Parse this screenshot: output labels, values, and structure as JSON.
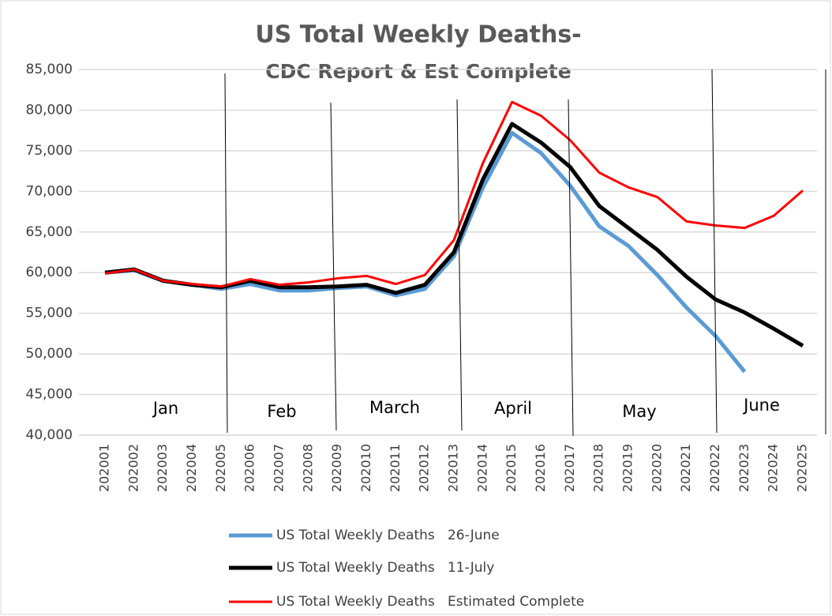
{
  "chart_data": {
    "type": "line",
    "title": "US Total Weekly Deaths-",
    "subtitle": "CDC Report & Est Complete",
    "categories": [
      "202001",
      "202002",
      "202003",
      "202004",
      "202005",
      "202006",
      "202007",
      "202008",
      "202009",
      "202010",
      "202011",
      "202012",
      "202013",
      "202014",
      "202015",
      "202016",
      "202017",
      "202018",
      "202019",
      "202020",
      "202021",
      "202022",
      "202023",
      "202024",
      "202025"
    ],
    "series": [
      {
        "name": "US Total Weekly Deaths   26-June",
        "color": "#5b9bd5",
        "values": [
          60000,
          60300,
          59000,
          58500,
          58000,
          58600,
          57800,
          57800,
          58100,
          58300,
          57200,
          58000,
          62000,
          70500,
          77200,
          74700,
          70700,
          65700,
          63300,
          59700,
          55700,
          52200,
          47800,
          null,
          null
        ]
      },
      {
        "name": "US Total Weekly Deaths   11-July",
        "color": "#000000",
        "values": [
          60000,
          60400,
          59000,
          58500,
          58200,
          59000,
          58200,
          58200,
          58300,
          58500,
          57500,
          58500,
          62500,
          71500,
          78300,
          76000,
          73000,
          68200,
          65500,
          62800,
          59500,
          56700,
          55100,
          53100,
          51000
        ]
      },
      {
        "name": "US Total Weekly Deaths   Estimated Complete",
        "color": "#ff0000",
        "values": [
          59900,
          60400,
          59000,
          58600,
          58300,
          59200,
          58500,
          58800,
          59300,
          59600,
          58600,
          59700,
          64000,
          73500,
          81000,
          79300,
          76300,
          72300,
          70500,
          69300,
          66300,
          65800,
          65500,
          67000,
          70100
        ]
      }
    ],
    "ylim": [
      40000,
      85000
    ],
    "yticks": [
      {
        "value": 40000,
        "label": "40,000"
      },
      {
        "value": 45000,
        "label": "45,000"
      },
      {
        "value": 50000,
        "label": "50,000"
      },
      {
        "value": 55000,
        "label": "55,000"
      },
      {
        "value": 60000,
        "label": "60,000"
      },
      {
        "value": 65000,
        "label": "65,000"
      },
      {
        "value": 70000,
        "label": "70,000"
      },
      {
        "value": 75000,
        "label": "75,000"
      },
      {
        "value": 80000,
        "label": "80,000"
      },
      {
        "value": 85000,
        "label": "85,000"
      }
    ],
    "grid": true,
    "legend": "bottom",
    "annotations": [
      "Jan",
      "Feb",
      "March",
      "April",
      "May",
      "June"
    ]
  }
}
